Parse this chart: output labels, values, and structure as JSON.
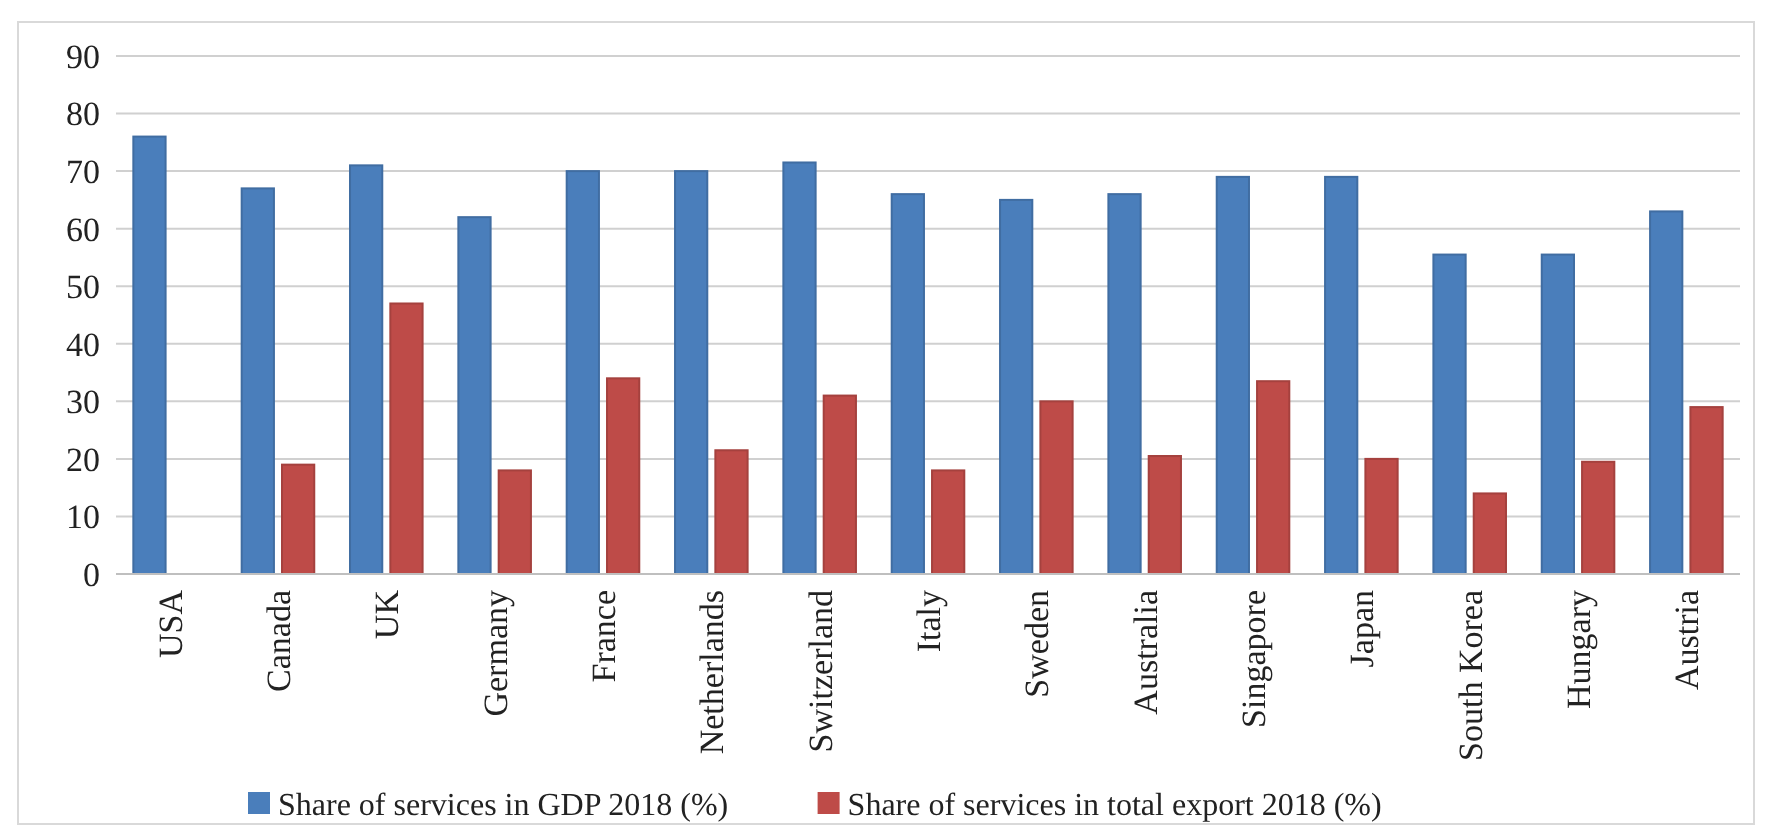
{
  "chart_data": {
    "type": "bar",
    "categories": [
      "USA",
      "Canada",
      "UK",
      "Germany",
      "France",
      "Netherlands",
      "Switzerland",
      "Italy",
      "Sweden",
      "Australia",
      "Singapore",
      "Japan",
      "South Korea",
      "Hungary",
      "Austria"
    ],
    "series": [
      {
        "name": "Share of services in GDP 2018 (%)",
        "color": "#4a7ebb",
        "values": [
          76,
          67,
          71,
          62,
          70,
          70,
          71.5,
          66,
          65,
          66,
          69,
          69,
          55.5,
          55.5,
          63
        ]
      },
      {
        "name": "Share of services in total export 2018 (%)",
        "color": "#be4b48",
        "values": [
          null,
          19,
          47,
          18,
          34,
          21.5,
          31,
          18,
          30,
          20.5,
          33.5,
          20,
          14,
          19.5,
          29
        ]
      }
    ],
    "ylim": [
      0,
      90
    ],
    "yticks": [
      0,
      10,
      20,
      30,
      40,
      50,
      60,
      70,
      80,
      90
    ],
    "grid": "y",
    "legend": "bottom"
  }
}
